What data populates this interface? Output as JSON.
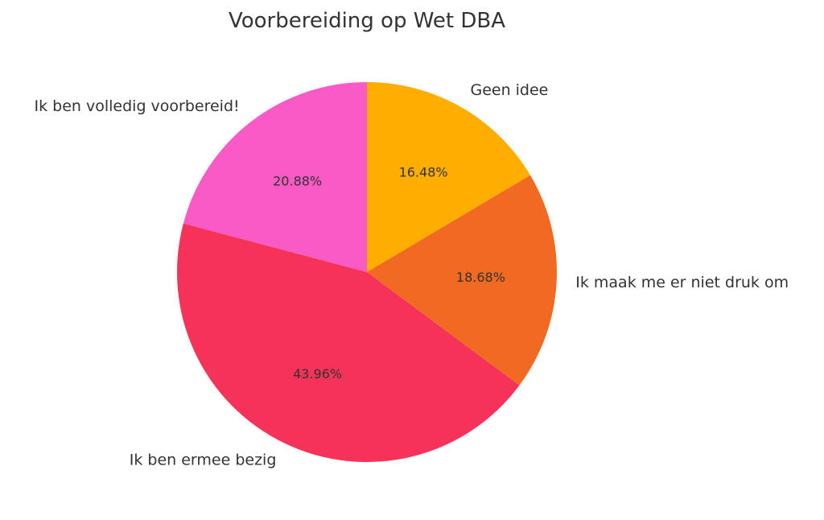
{
  "chart_data": {
    "type": "pie",
    "title": "Voorbereiding op Wet DBA",
    "categories": [
      "Geen idee",
      "Ik maak me er niet druk om",
      "Ik ben ermee bezig",
      "Ik ben volledig voorbereid!"
    ],
    "values": [
      16.48,
      18.68,
      43.96,
      20.88
    ],
    "value_labels": [
      "16.48%",
      "18.68%",
      "43.96%",
      "20.88%"
    ],
    "colors": [
      "#FFAE00",
      "#F26922",
      "#F53257",
      "#F95AC6"
    ],
    "start_angle_deg": 90,
    "direction": "clockwise",
    "legend": "none"
  }
}
